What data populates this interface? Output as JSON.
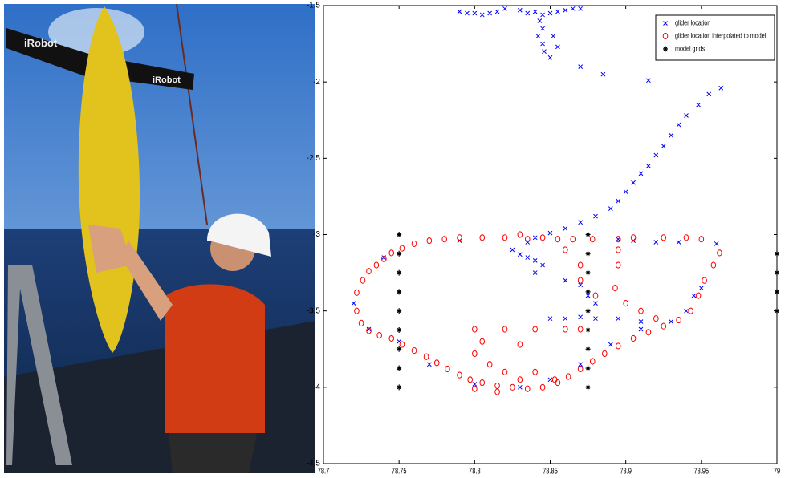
{
  "photo": {
    "labels": [
      "iRobot",
      "iRobot"
    ]
  },
  "chart_data": {
    "type": "scatter",
    "xlim": [
      78.7,
      79
    ],
    "xticks": [
      78.7,
      78.75,
      78.8,
      78.85,
      78.9,
      78.95,
      79
    ],
    "ylim": [
      -4.5,
      -1.5
    ],
    "yticks": [
      -1.5,
      -2,
      -2.5,
      -3,
      -3.5,
      -4,
      -4.5
    ],
    "legend": "upper right",
    "series": [
      {
        "name": "glider location",
        "color": "#0000ff",
        "marker": "x",
        "x": [
          78.79,
          78.795,
          78.8,
          78.805,
          78.81,
          78.815,
          78.82,
          78.83,
          78.835,
          78.84,
          78.845,
          78.85,
          78.855,
          78.86,
          78.865,
          78.87,
          78.843,
          78.845,
          78.842,
          78.845,
          78.846,
          78.85,
          78.855,
          78.852,
          78.87,
          78.885,
          78.915,
          78.963,
          78.955,
          78.948,
          78.94,
          78.935,
          78.93,
          78.925,
          78.92,
          78.915,
          78.91,
          78.905,
          78.9,
          78.895,
          78.89,
          78.88,
          78.87,
          78.86,
          78.85,
          78.84,
          78.835,
          78.825,
          78.83,
          78.835,
          78.84,
          78.845,
          78.84,
          78.86,
          78.87,
          78.875,
          78.88,
          78.85,
          78.86,
          78.87,
          78.88,
          78.895,
          78.91,
          78.93,
          78.94,
          78.945,
          78.95,
          78.96,
          78.935,
          78.92,
          78.905,
          78.895,
          78.72,
          78.73,
          78.75,
          78.77,
          78.8,
          78.83,
          78.85,
          78.87,
          78.89,
          78.91,
          78.74,
          78.79
        ],
        "values": [
          -1.54,
          -1.55,
          -1.55,
          -1.56,
          -1.55,
          -1.54,
          -1.52,
          -1.53,
          -1.55,
          -1.54,
          -1.56,
          -1.55,
          -1.54,
          -1.53,
          -1.52,
          -1.52,
          -1.6,
          -1.65,
          -1.7,
          -1.75,
          -1.8,
          -1.84,
          -1.77,
          -1.7,
          -1.9,
          -1.95,
          -1.99,
          -2.04,
          -2.08,
          -2.15,
          -2.22,
          -2.28,
          -2.35,
          -2.42,
          -2.48,
          -2.55,
          -2.6,
          -2.66,
          -2.72,
          -2.78,
          -2.83,
          -2.88,
          -2.92,
          -2.96,
          -2.99,
          -3.02,
          -3.05,
          -3.1,
          -3.13,
          -3.15,
          -3.17,
          -3.2,
          -3.25,
          -3.3,
          -3.33,
          -3.4,
          -3.45,
          -3.55,
          -3.55,
          -3.54,
          -3.55,
          -3.55,
          -3.57,
          -3.57,
          -3.5,
          -3.4,
          -3.35,
          -3.06,
          -3.05,
          -3.05,
          -3.04,
          -3.03,
          -3.45,
          -3.62,
          -3.7,
          -3.85,
          -3.98,
          -4.0,
          -3.95,
          -3.85,
          -3.72,
          -3.62,
          -3.15,
          -3.04
        ]
      },
      {
        "name": "glider location interpolated to model",
        "color": "#ff0000",
        "marker": "o",
        "x": [
          78.722,
          78.722,
          78.725,
          78.73,
          78.737,
          78.745,
          78.752,
          78.76,
          78.768,
          78.775,
          78.782,
          78.79,
          78.797,
          78.805,
          78.815,
          78.825,
          78.835,
          78.845,
          78.855,
          78.862,
          78.87,
          78.878,
          78.886,
          78.895,
          78.905,
          78.915,
          78.925,
          78.935,
          78.943,
          78.948,
          78.952,
          78.958,
          78.962,
          78.726,
          78.73,
          78.735,
          78.74,
          78.745,
          78.752,
          78.76,
          78.77,
          78.78,
          78.79,
          78.805,
          78.82,
          78.83,
          78.835,
          78.845,
          78.855,
          78.865,
          78.878,
          78.895,
          78.905,
          78.925,
          78.94,
          78.95,
          78.86,
          78.87,
          78.87,
          78.88,
          78.893,
          78.895,
          78.895,
          78.9,
          78.91,
          78.92,
          78.8,
          78.805,
          78.8,
          78.81,
          78.82,
          78.83,
          78.82,
          78.84,
          78.86,
          78.87,
          78.84,
          78.83,
          78.8,
          78.815,
          78.853
        ],
        "values": [
          -3.38,
          -3.5,
          -3.58,
          -3.63,
          -3.66,
          -3.68,
          -3.72,
          -3.76,
          -3.8,
          -3.84,
          -3.88,
          -3.92,
          -3.95,
          -3.97,
          -3.99,
          -4.0,
          -4.01,
          -4.0,
          -3.97,
          -3.93,
          -3.88,
          -3.83,
          -3.78,
          -3.73,
          -3.68,
          -3.64,
          -3.6,
          -3.56,
          -3.5,
          -3.4,
          -3.3,
          -3.2,
          -3.12,
          -3.3,
          -3.24,
          -3.2,
          -3.16,
          -3.12,
          -3.09,
          -3.06,
          -3.04,
          -3.03,
          -3.02,
          -3.02,
          -3.02,
          -3.0,
          -3.03,
          -3.02,
          -3.03,
          -3.03,
          -3.03,
          -3.03,
          -3.02,
          -3.02,
          -3.02,
          -3.03,
          -3.1,
          -3.2,
          -3.3,
          -3.4,
          -3.35,
          -3.2,
          -3.1,
          -3.45,
          -3.5,
          -3.55,
          -3.62,
          -3.7,
          -3.78,
          -3.85,
          -3.9,
          -3.72,
          -3.62,
          -3.62,
          -3.62,
          -3.62,
          -3.9,
          -3.95,
          -4.01,
          -4.03,
          -3.95
        ]
      },
      {
        "name": "model grids",
        "color": "#000000",
        "marker": "*",
        "x": [
          78.75,
          78.75,
          78.75,
          78.75,
          78.75,
          78.75,
          78.75,
          78.75,
          78.75,
          78.875,
          78.875,
          78.875,
          78.875,
          78.875,
          78.875,
          78.875,
          78.875,
          78.875,
          79,
          79,
          79,
          79
        ],
        "values": [
          -3,
          -3.125,
          -3.25,
          -3.375,
          -3.5,
          -3.625,
          -3.75,
          -3.875,
          -4,
          -3,
          -3.125,
          -3.25,
          -3.375,
          -3.5,
          -3.625,
          -3.75,
          -3.875,
          -4,
          -3.125,
          -3.25,
          -3.375,
          -3.5
        ]
      }
    ]
  }
}
